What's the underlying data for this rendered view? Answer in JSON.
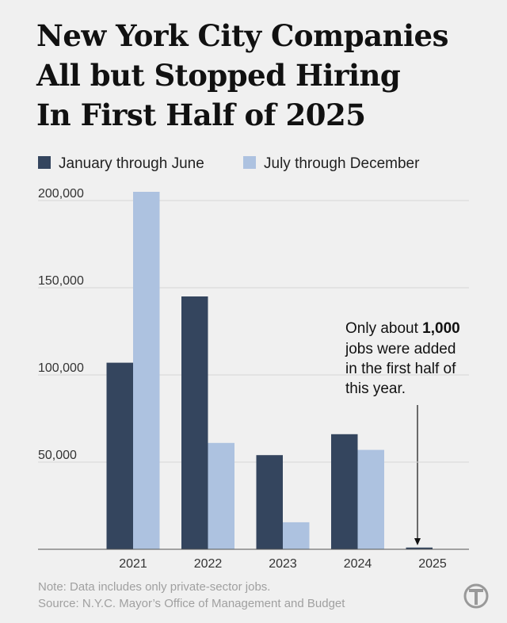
{
  "chart_data": {
    "type": "bar",
    "title": [
      "New York City Companies",
      "All but Stopped Hiring",
      "In First Half of 2025"
    ],
    "categories": [
      "2021",
      "2022",
      "2023",
      "2024",
      "2025"
    ],
    "series": [
      {
        "name": "January through June",
        "color": "#34455e",
        "values": [
          107000,
          145000,
          54000,
          66000,
          1000
        ]
      },
      {
        "name": "July through December",
        "color": "#adc2e0",
        "values": [
          205000,
          61000,
          15500,
          57000,
          null
        ]
      }
    ],
    "ylim": [
      0,
      210000
    ],
    "yticks": [
      {
        "value": 50000,
        "label": "50,000"
      },
      {
        "value": 100000,
        "label": "100,000"
      },
      {
        "value": 150000,
        "label": "150,000"
      },
      {
        "value": 200000,
        "label": "200,000"
      }
    ],
    "grid": true,
    "annotation": {
      "prefix": "Only about ",
      "bold": "1,000",
      "lines": [
        "jobs were added",
        "in the first half of",
        "this year."
      ]
    },
    "note": "Note: Data includes only private-sector jobs.",
    "source": "Source: N.Y.C. Mayor’s Office of Management and Budget"
  }
}
